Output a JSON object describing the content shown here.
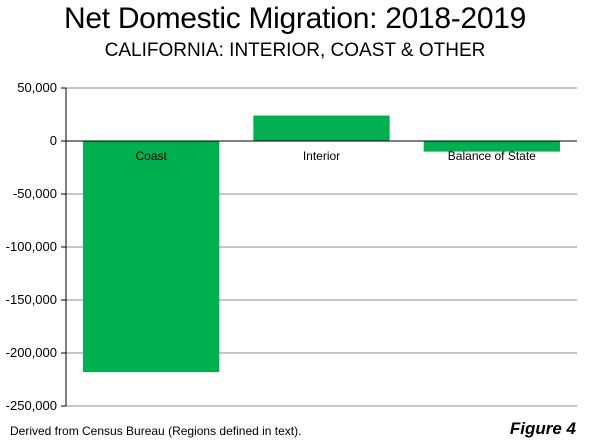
{
  "chart_data": {
    "type": "bar",
    "title": "Net Domestic Migration: 2018-2019",
    "subtitle": "CALIFORNIA: INTERIOR, COAST & OTHER",
    "categories": [
      "Coast",
      "Interior",
      "Balance of State"
    ],
    "values": [
      -218000,
      24000,
      -10000
    ],
    "ylim": [
      -250000,
      50000
    ],
    "yticks": [
      50000,
      0,
      -50000,
      -100000,
      -150000,
      -200000,
      -250000
    ],
    "ytick_labels": [
      "50,000",
      "0",
      "-50,000",
      "-100,000",
      "-150,000",
      "-200,000",
      "-250,000"
    ],
    "grid": true,
    "bar_color": "#00b050",
    "xlabel": "",
    "ylabel": ""
  },
  "footer": {
    "source": "Derived from Census Bureau (Regions defined in text).",
    "figure_label": "Figure 4"
  }
}
